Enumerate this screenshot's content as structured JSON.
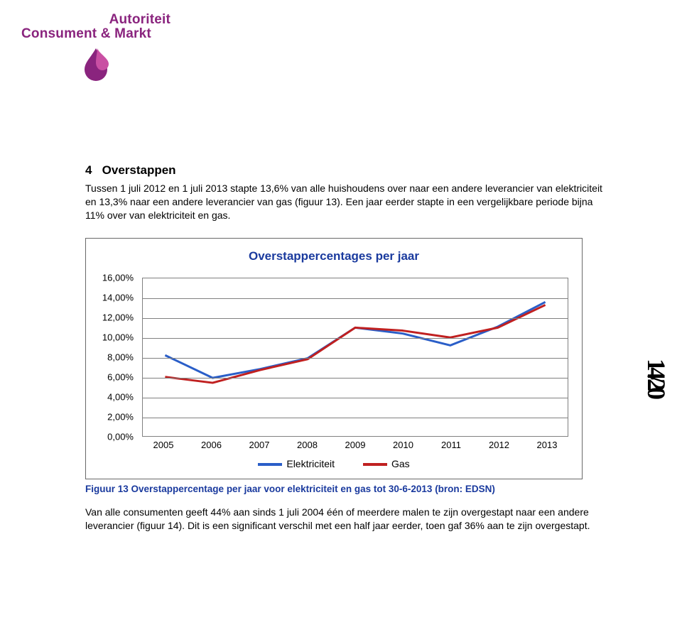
{
  "brand": {
    "line1": "Autoriteit",
    "line2": "Consument & Markt",
    "color": "#8a247e",
    "icon_colors": {
      "drop": "#8a247e",
      "flame": "#b43b8f"
    }
  },
  "page_indicator": "14/20",
  "section": {
    "number": "4",
    "title": "Overstappen"
  },
  "paragraphs": {
    "p1": "Tussen 1 juli 2012 en 1 juli 2013 stapte 13,6% van alle huishoudens over naar een andere leverancier van elektriciteit en 13,3% naar een andere leverancier van gas (figuur 13). Een jaar eerder stapte in een vergelijkbare periode bijna 11% over van elektriciteit en gas.",
    "p2": "Van alle consumenten geeft 44% aan sinds 1 juli 2004 één of meerdere malen te zijn overgestapt naar een andere leverancier (figuur 14). Dit is een significant verschil met een half jaar eerder, toen gaf 36% aan te zijn overgestapt."
  },
  "chart": {
    "type": "line",
    "title": "Overstappercentages per jaar",
    "title_color": "#1a3a9e",
    "title_fontsize": 17,
    "background_color": "#ffffff",
    "border_color": "#696969",
    "grid_color": "#808080",
    "x_categories": [
      "2005",
      "2006",
      "2007",
      "2008",
      "2009",
      "2010",
      "2011",
      "2012",
      "2013"
    ],
    "y_ticks": [
      "0,00%",
      "2,00%",
      "4,00%",
      "6,00%",
      "8,00%",
      "10,00%",
      "12,00%",
      "14,00%",
      "16,00%"
    ],
    "ylim": [
      0,
      16
    ],
    "ytick_step": 2,
    "line_width": 3,
    "series": [
      {
        "name": "Elektriciteit",
        "color": "#2a5ec8",
        "values": [
          8.2,
          5.9,
          6.8,
          7.9,
          11.0,
          10.4,
          9.2,
          11.1,
          13.6
        ]
      },
      {
        "name": "Gas",
        "color": "#c02020",
        "values": [
          6.0,
          5.4,
          6.7,
          7.8,
          11.0,
          10.7,
          10.0,
          11.0,
          13.3
        ]
      }
    ],
    "legend": {
      "items": [
        "Elektriciteit",
        "Gas"
      ]
    }
  },
  "caption": "Figuur 13 Overstappercentage per jaar voor elektriciteit en gas tot 30-6-2013 (bron: EDSN)",
  "caption_color": "#1a3a9e"
}
